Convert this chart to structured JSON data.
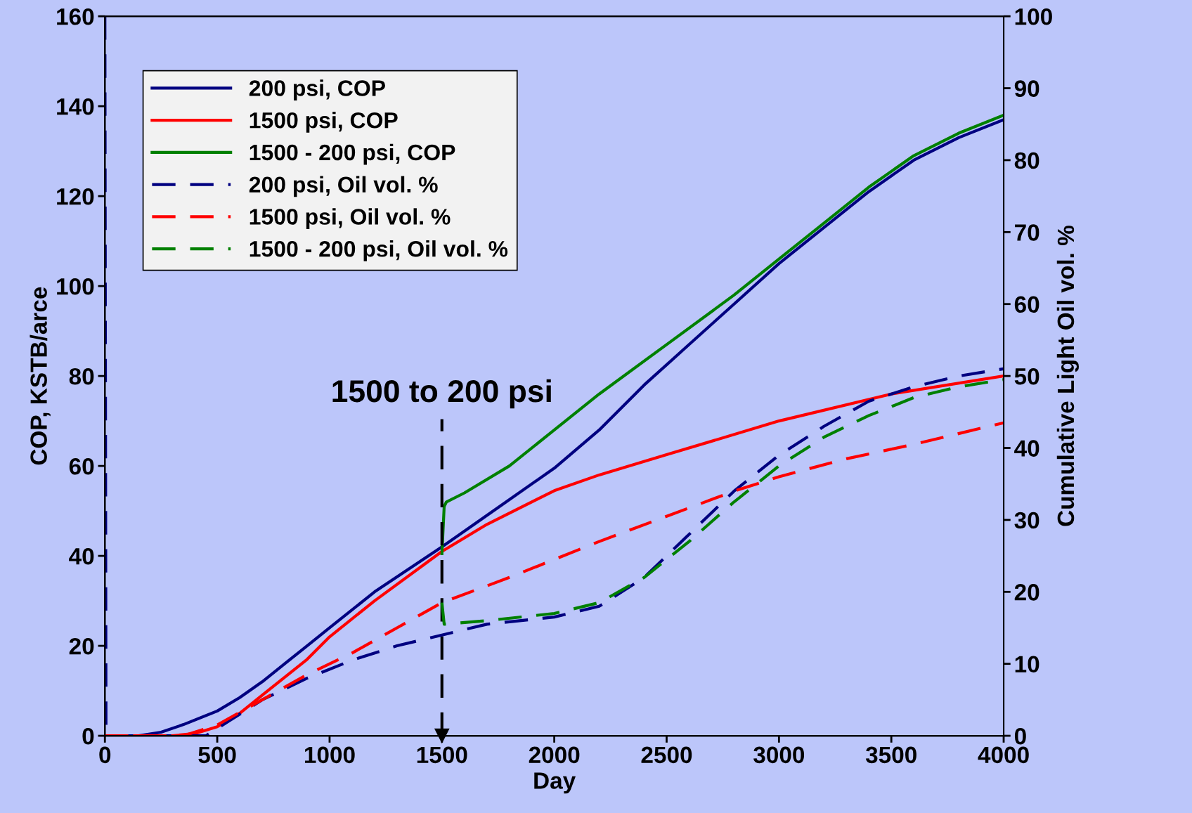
{
  "chart_data": {
    "type": "line",
    "xlabel": "Day",
    "ylabel": "COP, KSTB/arce",
    "y2label": "Cumulative Light Oil vol. %",
    "xlim": [
      0,
      4000
    ],
    "xticks": [
      0,
      500,
      1000,
      1500,
      2000,
      2500,
      3000,
      3500,
      4000
    ],
    "ylim": [
      0,
      160
    ],
    "yticks": [
      0,
      20,
      40,
      60,
      80,
      100,
      120,
      140,
      160
    ],
    "y2lim": [
      0,
      100
    ],
    "y2ticks": [
      0,
      10,
      20,
      30,
      40,
      50,
      60,
      70,
      80,
      90,
      100
    ],
    "grid": false,
    "legend": "top left",
    "ref_lines": [
      {
        "axis": "x",
        "value": 1500,
        "label": "1500 to 200 psi",
        "color": "#000000",
        "line_style": "dashed"
      }
    ],
    "series": [
      {
        "name": "200 psi, COP",
        "color": "#000080",
        "line_style": "solid",
        "x": [
          0,
          150,
          250,
          350,
          500,
          600,
          700,
          800,
          900,
          1000,
          1200,
          1500,
          1700,
          2000,
          2200,
          2400,
          2600,
          2800,
          3000,
          3200,
          3400,
          3600,
          3800,
          4000
        ],
        "values": [
          0,
          0,
          0.8,
          2.5,
          5.5,
          8.5,
          12,
          16,
          20,
          24,
          32,
          42,
          49,
          59.5,
          68,
          78,
          87,
          96,
          105,
          113,
          121,
          128,
          133,
          137
        ]
      },
      {
        "name": "1500 psi, COP",
        "color": "#ff0000",
        "line_style": "solid",
        "x": [
          0,
          300,
          400,
          500,
          600,
          700,
          800,
          900,
          1000,
          1200,
          1500,
          1700,
          2000,
          2200,
          2500,
          3000,
          3500,
          4000
        ],
        "values": [
          0,
          0,
          0.5,
          2,
          5,
          9,
          13,
          17,
          22,
          30,
          41,
          47,
          54.5,
          58,
          62.5,
          70,
          76,
          80
        ]
      },
      {
        "name": "1500 - 200 psi, COP",
        "color": "#008000",
        "line_style": "solid",
        "x": [
          1500,
          1510,
          1520,
          1600,
          1800,
          2000,
          2200,
          2500,
          2800,
          3000,
          3200,
          3400,
          3600,
          3800,
          4000
        ],
        "values": [
          40.5,
          51,
          52,
          54,
          60,
          68,
          76,
          87,
          98,
          106,
          114,
          122,
          129,
          134,
          138
        ]
      },
      {
        "name": "200 psi, Oil vol. %",
        "color": "#000080",
        "line_style": "dashed",
        "axis": "y2",
        "x": [
          0,
          5,
          450,
          550,
          700,
          900,
          1100,
          1300,
          1500,
          1700,
          2000,
          2200,
          2400,
          2600,
          2800,
          3000,
          3200,
          3400,
          3600,
          3800,
          4000
        ],
        "values": [
          100,
          0,
          0,
          2,
          5,
          8,
          10.5,
          12.5,
          14,
          15.5,
          16.5,
          18,
          22,
          28,
          34,
          39,
          43,
          46.5,
          48.5,
          50,
          51
        ]
      },
      {
        "name": "1500 psi, Oil vol. %",
        "color": "#ff0000",
        "line_style": "dashed",
        "axis": "y2",
        "x": [
          0,
          350,
          500,
          700,
          900,
          1100,
          1300,
          1500,
          1800,
          2000,
          2200,
          2500,
          2800,
          3000,
          3300,
          3600,
          4000
        ],
        "values": [
          0,
          0,
          1.5,
          5,
          8.5,
          11.5,
          15,
          18.5,
          22,
          24.5,
          27,
          30.5,
          34,
          36,
          38.5,
          40.5,
          43.5
        ]
      },
      {
        "name": "1500 - 200 psi, Oil vol. %",
        "color": "#008000",
        "line_style": "dashed",
        "axis": "y2",
        "x": [
          1500,
          1510,
          1700,
          2000,
          2200,
          2400,
          2600,
          2800,
          3000,
          3200,
          3400,
          3600,
          3800,
          4000
        ],
        "values": [
          18.5,
          15.5,
          16,
          17,
          18.5,
          22,
          27,
          32.5,
          37.5,
          41.5,
          44.5,
          47,
          48.5,
          49.5
        ]
      }
    ]
  }
}
